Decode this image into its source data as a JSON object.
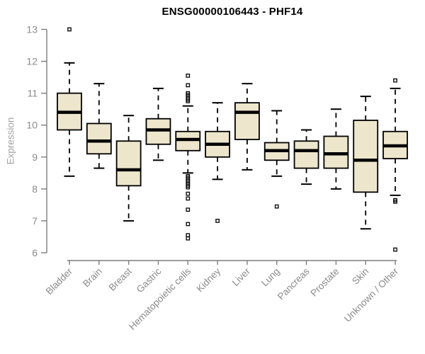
{
  "chart_data": {
    "type": "boxplot",
    "title": "ENSG00000106443 - PHF14",
    "xlabel": "",
    "ylabel": "Expression",
    "ylim": [
      6,
      13
    ],
    "yticks": [
      6,
      7,
      8,
      9,
      10,
      11,
      12,
      13
    ],
    "grid": false,
    "legend": "none",
    "colors": {
      "box_fill": "#EDE6CC",
      "box_stroke": "#000000",
      "median": "#000000",
      "axis": "#7d7d7d",
      "tick_label": "#8a8a8a",
      "title": "#000000",
      "background": "#ffffff"
    },
    "categories": [
      "Bladder",
      "Brain",
      "Breast",
      "Gastric",
      "Hematopoietic cells",
      "Kidney",
      "Liver",
      "Lung",
      "Pancreas",
      "Prostate",
      "Skin",
      "Unknown / Other"
    ],
    "boxes": [
      {
        "label": "Bladder",
        "whisker_low": 8.4,
        "q1": 9.85,
        "median": 10.4,
        "q3": 11.0,
        "whisker_high": 11.95,
        "outliers": [
          13.0
        ]
      },
      {
        "label": "Brain",
        "whisker_low": 8.65,
        "q1": 9.1,
        "median": 9.5,
        "q3": 10.05,
        "whisker_high": 11.3,
        "outliers": []
      },
      {
        "label": "Breast",
        "whisker_low": 7.0,
        "q1": 8.1,
        "median": 8.6,
        "q3": 9.5,
        "whisker_high": 10.3,
        "outliers": []
      },
      {
        "label": "Gastric",
        "whisker_low": 8.9,
        "q1": 9.4,
        "median": 9.85,
        "q3": 10.2,
        "whisker_high": 11.15,
        "outliers": []
      },
      {
        "label": "Hematopoietic cells",
        "whisker_low": 8.5,
        "q1": 9.2,
        "median": 9.55,
        "q3": 9.8,
        "whisker_high": 10.6,
        "outliers": [
          11.55,
          11.25,
          11.0,
          10.95,
          10.9,
          10.85,
          10.8,
          10.75,
          8.4,
          8.35,
          8.3,
          8.25,
          8.2,
          8.15,
          8.1,
          8.05,
          7.85,
          7.7,
          7.35,
          6.9,
          6.55,
          6.45
        ]
      },
      {
        "label": "Kidney",
        "whisker_low": 8.3,
        "q1": 9.0,
        "median": 9.4,
        "q3": 9.8,
        "whisker_high": 10.7,
        "outliers": [
          7.0
        ]
      },
      {
        "label": "Liver",
        "whisker_low": 8.6,
        "q1": 9.55,
        "median": 10.4,
        "q3": 10.7,
        "whisker_high": 11.3,
        "outliers": []
      },
      {
        "label": "Lung",
        "whisker_low": 8.4,
        "q1": 8.9,
        "median": 9.2,
        "q3": 9.45,
        "whisker_high": 10.45,
        "outliers": [
          7.45
        ]
      },
      {
        "label": "Pancreas",
        "whisker_low": 8.15,
        "q1": 8.65,
        "median": 9.2,
        "q3": 9.5,
        "whisker_high": 9.85,
        "outliers": []
      },
      {
        "label": "Prostate",
        "whisker_low": 8.0,
        "q1": 8.65,
        "median": 9.1,
        "q3": 9.65,
        "whisker_high": 10.5,
        "outliers": []
      },
      {
        "label": "Skin",
        "whisker_low": 6.75,
        "q1": 7.9,
        "median": 8.9,
        "q3": 10.15,
        "whisker_high": 10.9,
        "outliers": []
      },
      {
        "label": "Unknown / Other",
        "whisker_low": 7.8,
        "q1": 8.95,
        "median": 9.35,
        "q3": 9.8,
        "whisker_high": 11.15,
        "outliers": [
          11.4,
          7.65,
          7.6,
          6.1
        ]
      }
    ]
  }
}
